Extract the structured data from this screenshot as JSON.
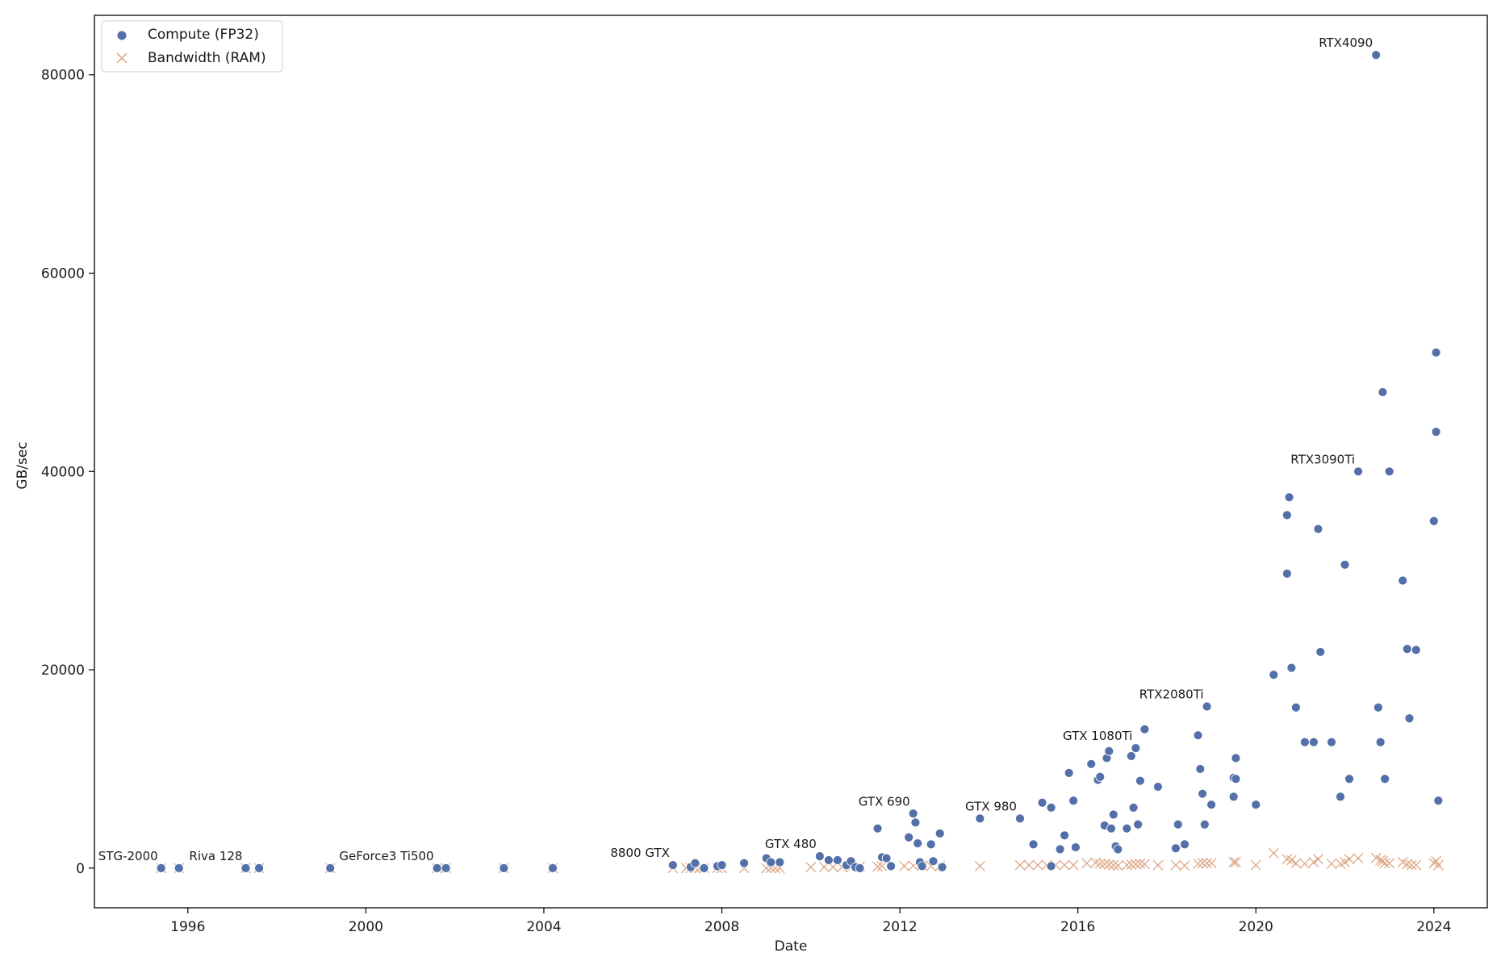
{
  "chart_data": {
    "type": "scatter",
    "xlabel": "Date",
    "ylabel": "GB/sec",
    "xlim": [
      1993.9,
      2025.2
    ],
    "ylim": [
      -4000,
      86000
    ],
    "x_ticks": [
      1996,
      2000,
      2004,
      2008,
      2012,
      2016,
      2020,
      2024
    ],
    "y_ticks": [
      0,
      20000,
      40000,
      60000,
      80000
    ],
    "grid": false,
    "legend_position": "top-left",
    "colors": {
      "compute": "#5470a8",
      "bandwidth": "#d9a07c"
    },
    "series": [
      {
        "name": "Compute (FP32)",
        "marker": "circle",
        "x": [
          1995.4,
          1995.8,
          1997.3,
          1997.6,
          1999.2,
          2001.6,
          2001.8,
          2003.1,
          2004.2,
          2006.9,
          2007.3,
          2007.4,
          2007.6,
          2007.9,
          2008.0,
          2008.5,
          2009.0,
          2009.1,
          2009.3,
          2010.2,
          2010.4,
          2010.6,
          2010.8,
          2010.9,
          2011.0,
          2011.1,
          2011.5,
          2011.6,
          2011.7,
          2011.8,
          2012.2,
          2012.3,
          2012.35,
          2012.4,
          2012.45,
          2012.5,
          2012.7,
          2012.75,
          2012.9,
          2012.95,
          2013.8,
          2014.7,
          2015.0,
          2015.2,
          2015.4,
          2015.4,
          2015.6,
          2015.7,
          2015.8,
          2015.9,
          2015.95,
          2016.3,
          2016.45,
          2016.5,
          2016.6,
          2016.65,
          2016.7,
          2016.75,
          2016.8,
          2016.85,
          2016.9,
          2017.1,
          2017.2,
          2017.25,
          2017.3,
          2017.35,
          2017.4,
          2017.5,
          2017.8,
          2018.2,
          2018.25,
          2018.4,
          2018.7,
          2018.75,
          2018.8,
          2018.85,
          2018.9,
          2019.0,
          2019.5,
          2019.5,
          2019.55,
          2019.55,
          2020.0,
          2020.4,
          2020.7,
          2020.7,
          2020.75,
          2020.8,
          2020.9,
          2021.1,
          2021.3,
          2021.4,
          2021.45,
          2021.7,
          2021.9,
          2022.0,
          2022.1,
          2022.3,
          2022.7,
          2022.75,
          2022.8,
          2022.85,
          2022.9,
          2023.0,
          2023.3,
          2023.4,
          2023.45,
          2023.6,
          2024.0,
          2024.05,
          2024.05,
          2024.1
        ],
        "y": [
          0,
          0,
          0,
          0,
          0,
          0,
          0,
          0,
          0,
          300,
          100,
          500,
          0,
          200,
          300,
          500,
          1000,
          600,
          600,
          1200,
          800,
          800,
          300,
          700,
          100,
          0,
          4000,
          1100,
          1000,
          200,
          3100,
          5500,
          4600,
          2500,
          600,
          200,
          2400,
          700,
          3500,
          100,
          5000,
          5000,
          2400,
          6600,
          6100,
          200,
          1900,
          3300,
          9600,
          6800,
          2100,
          10500,
          8900,
          9200,
          4300,
          11100,
          11800,
          4000,
          5400,
          2200,
          1900,
          4000,
          11300,
          6100,
          12100,
          4400,
          8800,
          14000,
          8200,
          2000,
          4400,
          2400,
          13400,
          10000,
          7500,
          4400,
          16300,
          6400,
          7200,
          9100,
          11100,
          9000,
          6400,
          19500,
          29700,
          35600,
          37400,
          20200,
          16200,
          12700,
          12700,
          34200,
          21800,
          12700,
          7200,
          30600,
          9000,
          40000,
          82000,
          16200,
          12700,
          48000,
          9000,
          40000,
          29000,
          22100,
          15100,
          22000,
          35000,
          44000,
          52000,
          6800
        ]
      },
      {
        "name": "Bandwidth (RAM)",
        "marker": "x",
        "x": [
          1995.4,
          1995.8,
          1997.3,
          1997.6,
          1999.2,
          2001.6,
          2001.8,
          2003.1,
          2004.2,
          2006.9,
          2007.2,
          2007.3,
          2007.4,
          2007.5,
          2007.6,
          2007.9,
          2008.0,
          2008.5,
          2009.0,
          2009.1,
          2009.2,
          2009.3,
          2010.0,
          2010.3,
          2010.5,
          2010.7,
          2010.9,
          2011.1,
          2011.5,
          2011.6,
          2012.1,
          2012.3,
          2012.5,
          2012.7,
          2012.9,
          2013.8,
          2014.7,
          2014.9,
          2015.1,
          2015.3,
          2015.5,
          2015.7,
          2015.9,
          2016.2,
          2016.4,
          2016.5,
          2016.6,
          2016.7,
          2016.8,
          2016.9,
          2017.1,
          2017.2,
          2017.3,
          2017.4,
          2017.5,
          2017.8,
          2018.2,
          2018.4,
          2018.7,
          2018.8,
          2018.9,
          2019.0,
          2019.5,
          2019.55,
          2020.0,
          2020.4,
          2020.7,
          2020.8,
          2020.9,
          2021.1,
          2021.3,
          2021.4,
          2021.7,
          2021.9,
          2022.0,
          2022.1,
          2022.3,
          2022.7,
          2022.8,
          2022.85,
          2022.9,
          2023.0,
          2023.3,
          2023.4,
          2023.5,
          2023.6,
          2024.0,
          2024.05,
          2024.1
        ],
        "y": [
          0,
          0,
          0,
          0,
          0,
          0,
          0,
          0,
          0,
          0,
          0,
          0,
          0,
          0,
          0,
          0,
          0,
          0,
          0,
          0,
          0,
          0,
          100,
          100,
          100,
          100,
          100,
          150,
          150,
          200,
          200,
          250,
          250,
          200,
          200,
          200,
          300,
          300,
          300,
          300,
          300,
          300,
          300,
          500,
          550,
          450,
          400,
          350,
          300,
          250,
          300,
          350,
          400,
          450,
          400,
          300,
          300,
          250,
          450,
          500,
          500,
          500,
          600,
          600,
          300,
          1500,
          900,
          800,
          500,
          450,
          600,
          900,
          450,
          450,
          600,
          900,
          1000,
          1000,
          800,
          700,
          500,
          500,
          600,
          400,
          300,
          300,
          500,
          700,
          300
        ]
      }
    ],
    "annotations": [
      {
        "text": "STG-2000",
        "x": 1995.4,
        "y": 0
      },
      {
        "text": "Riva 128",
        "x": 1997.3,
        "y": 0
      },
      {
        "text": "GeForce3 Ti500",
        "x": 2001.6,
        "y": 0
      },
      {
        "text": "8800 GTX",
        "x": 2006.9,
        "y": 300
      },
      {
        "text": "GTX 480",
        "x": 2010.2,
        "y": 1200
      },
      {
        "text": "GTX 690",
        "x": 2012.3,
        "y": 5500
      },
      {
        "text": "GTX 980",
        "x": 2014.7,
        "y": 5000
      },
      {
        "text": "GTX 1080Ti",
        "x": 2017.3,
        "y": 12100
      },
      {
        "text": "RTX2080Ti",
        "x": 2018.9,
        "y": 16300
      },
      {
        "text": "RTX3090Ti",
        "x": 2022.3,
        "y": 40000
      },
      {
        "text": "RTX4090",
        "x": 2022.7,
        "y": 82000
      }
    ]
  }
}
